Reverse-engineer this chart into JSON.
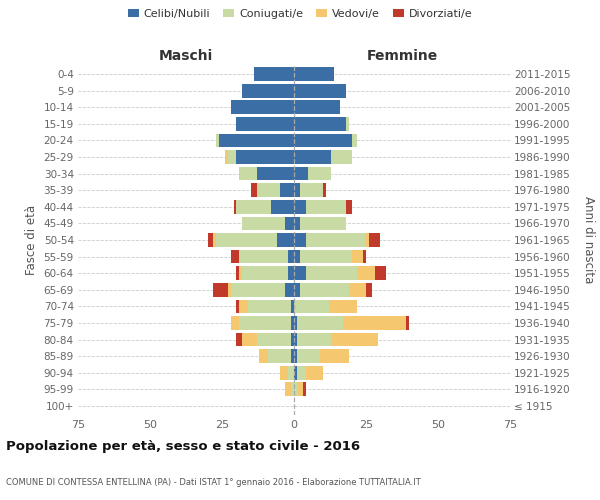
{
  "age_groups": [
    "100+",
    "95-99",
    "90-94",
    "85-89",
    "80-84",
    "75-79",
    "70-74",
    "65-69",
    "60-64",
    "55-59",
    "50-54",
    "45-49",
    "40-44",
    "35-39",
    "30-34",
    "25-29",
    "20-24",
    "15-19",
    "10-14",
    "5-9",
    "0-4"
  ],
  "birth_years": [
    "≤ 1915",
    "1916-1920",
    "1921-1925",
    "1926-1930",
    "1931-1935",
    "1936-1940",
    "1941-1945",
    "1946-1950",
    "1951-1955",
    "1956-1960",
    "1961-1965",
    "1966-1970",
    "1971-1975",
    "1976-1980",
    "1981-1985",
    "1986-1990",
    "1991-1995",
    "1996-2000",
    "2001-2005",
    "2006-2010",
    "2011-2015"
  ],
  "maschi": {
    "celibi": [
      0,
      0,
      0,
      1,
      1,
      1,
      1,
      3,
      2,
      2,
      6,
      3,
      8,
      5,
      13,
      20,
      26,
      20,
      22,
      18,
      14
    ],
    "coniugati": [
      0,
      1,
      2,
      8,
      12,
      18,
      15,
      19,
      16,
      17,
      21,
      15,
      12,
      8,
      6,
      3,
      1,
      0,
      0,
      0,
      0
    ],
    "vedovi": [
      0,
      2,
      3,
      3,
      5,
      3,
      3,
      1,
      1,
      0,
      1,
      0,
      0,
      0,
      0,
      1,
      0,
      0,
      0,
      0,
      0
    ],
    "divorziati": [
      0,
      0,
      0,
      0,
      2,
      0,
      1,
      5,
      1,
      3,
      2,
      0,
      1,
      2,
      0,
      0,
      0,
      0,
      0,
      0,
      0
    ]
  },
  "femmine": {
    "nubili": [
      0,
      0,
      1,
      1,
      1,
      1,
      0,
      2,
      4,
      2,
      4,
      2,
      4,
      2,
      5,
      13,
      20,
      18,
      16,
      18,
      14
    ],
    "coniugate": [
      0,
      1,
      3,
      8,
      12,
      16,
      12,
      17,
      18,
      18,
      21,
      16,
      14,
      8,
      8,
      7,
      2,
      1,
      0,
      0,
      0
    ],
    "vedove": [
      0,
      2,
      6,
      10,
      16,
      22,
      10,
      6,
      6,
      4,
      1,
      0,
      0,
      0,
      0,
      0,
      0,
      0,
      0,
      0,
      0
    ],
    "divorziate": [
      0,
      1,
      0,
      0,
      0,
      1,
      0,
      2,
      4,
      1,
      4,
      0,
      2,
      1,
      0,
      0,
      0,
      0,
      0,
      0,
      0
    ]
  },
  "colors": {
    "celibi": "#3a6ea5",
    "coniugati": "#c8dba4",
    "vedovi": "#f5c76e",
    "divorziati": "#c0392b"
  },
  "xlim": 75,
  "title": "Popolazione per età, sesso e stato civile - 2016",
  "subtitle": "COMUNE DI CONTESSA ENTELLINA (PA) - Dati ISTAT 1° gennaio 2016 - Elaborazione TUTTAITALIA.IT",
  "ylabel_left": "Fasce di età",
  "ylabel_right": "Anni di nascita",
  "xlabel_left": "Maschi",
  "xlabel_right": "Femmine"
}
